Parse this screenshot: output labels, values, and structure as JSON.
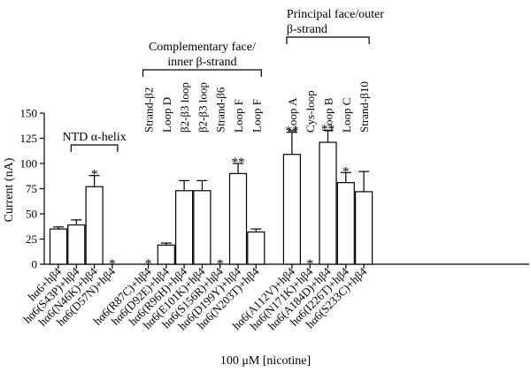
{
  "chart_data": {
    "type": "bar",
    "ylabel": "Current (nA)",
    "xlabel": "100 μM [nicotine]",
    "ylim": [
      0,
      150
    ],
    "yticks": [
      0,
      25,
      50,
      75,
      100,
      125,
      150
    ],
    "grid": false,
    "categories": [
      "hα6+hβ4",
      "hα6(S43P)+hβ4",
      "hα6(N46K)+hβ4",
      "hα6(D57N)+hβ4",
      "hα6(R87C)+hβ4",
      "hα6(D92E)+hβ4",
      "hα6(R96H)+hβ4",
      "hα6(E101K)+hβ4",
      "hα6(S156R)+hβ4",
      "hα6(D199Y)+hβ4",
      "hα6(N203T)+hβ4",
      "hα6(A112V)+hβ4",
      "hα6(N171K)+hβ4",
      "hα6(A184D)+hβ4",
      "hα6(I226T)+hβ4",
      "hα6(S233C)+hβ4"
    ],
    "values": [
      35,
      39,
      77,
      0,
      0,
      19,
      73,
      73,
      0,
      90,
      32,
      109,
      0,
      121,
      81,
      72
    ],
    "errors": [
      2,
      5,
      11,
      0,
      0,
      2,
      10,
      10,
      0,
      10,
      3,
      22,
      0,
      12,
      10,
      20
    ],
    "significance": [
      "",
      "",
      "*",
      "*",
      "*",
      "",
      "",
      "",
      "*",
      "**",
      "",
      "**",
      "*",
      "**",
      "*",
      ""
    ],
    "positions": [
      0,
      1,
      2,
      3,
      5,
      6,
      7,
      8,
      9,
      10,
      11,
      13,
      14,
      15,
      16,
      17
    ],
    "annotations": [
      "",
      "",
      "",
      "",
      "Strand-β2",
      "Loop D",
      "β2-β3 loop",
      "β2-β3 loop",
      "Strand-β6",
      "Loop F",
      "Loop F",
      "Loop A",
      "Cys-loop",
      "Loop B",
      "Loop C",
      "Strand-β10"
    ],
    "groups": [
      {
        "label": "NTD α-helix",
        "from": 1,
        "to": 3
      },
      {
        "label_lines": [
          "Complementary face/",
          "inner β-strand"
        ],
        "from": 4,
        "to": 10
      },
      {
        "label_lines": [
          "Principal face/outer",
          "β-strand"
        ],
        "from": 11,
        "to": 15
      }
    ]
  }
}
